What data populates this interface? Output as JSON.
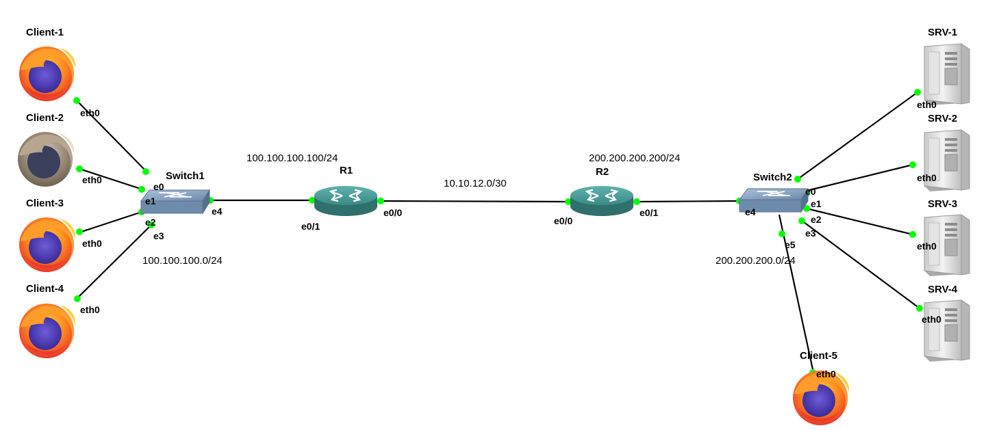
{
  "clients": [
    {
      "name": "Client-1",
      "port": "eth0"
    },
    {
      "name": "Client-2",
      "port": "eth0"
    },
    {
      "name": "Client-3",
      "port": "eth0"
    },
    {
      "name": "Client-4",
      "port": "eth0"
    },
    {
      "name": "Client-5",
      "port": "eth0"
    }
  ],
  "servers": [
    {
      "name": "SRV-1",
      "port": "eth0"
    },
    {
      "name": "SRV-2",
      "port": "eth0"
    },
    {
      "name": "SRV-3",
      "port": "eth0"
    },
    {
      "name": "SRV-4",
      "port": "eth0"
    }
  ],
  "switch1": {
    "name": "Switch1",
    "ports": [
      "e0",
      "e1",
      "e2",
      "e3",
      "e4"
    ]
  },
  "switch2": {
    "name": "Switch2",
    "ports": [
      "e0",
      "e1",
      "e2",
      "e3",
      "e4",
      "e5"
    ]
  },
  "r1": {
    "name": "R1",
    "ports": [
      "e0/1",
      "e0/0"
    ]
  },
  "r2": {
    "name": "R2",
    "ports": [
      "e0/0",
      "e0/1"
    ]
  },
  "networks": {
    "lan1": "100.100.100.0/24",
    "r1_ip": "100.100.100.100/24",
    "wan": "10.10.12.0/30",
    "r2_ip": "200.200.200.200/24",
    "lan2": "200.200.200.0/24"
  },
  "colors": {
    "port_dot": "#00ff00",
    "router": "#3f8f8c",
    "switch": "#7f9ab8",
    "server": "#d6d6d6"
  },
  "icons": {
    "client": "firefox-icon",
    "client_grey": "firefox-grey-icon",
    "server": "server-tower-icon",
    "router": "router-icon",
    "switch": "switch-icon"
  }
}
